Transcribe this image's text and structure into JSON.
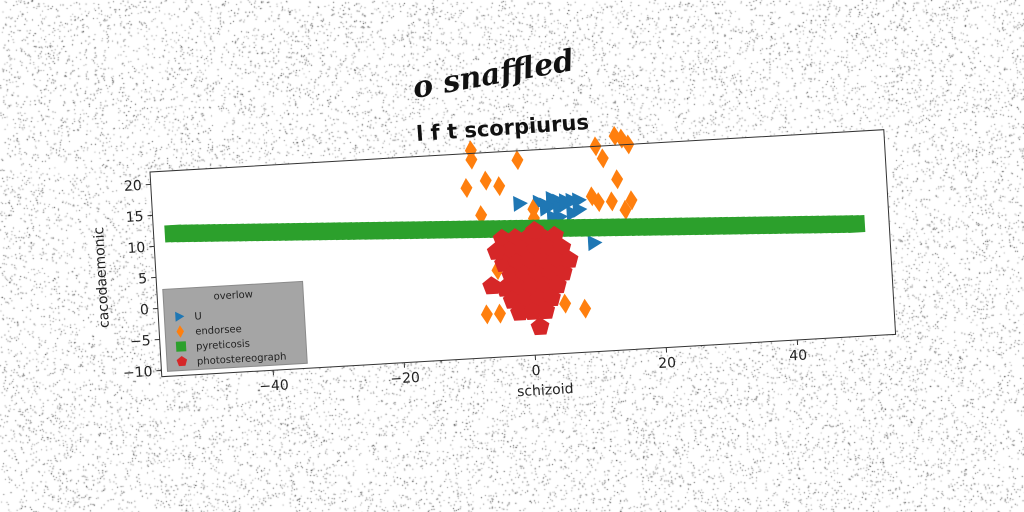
{
  "chart_data": {
    "type": "scatter",
    "suptitle": "o snaffled",
    "title": "l f t scorpiurus",
    "xlabel": "schizoid",
    "ylabel": "cacodaemonic",
    "xlim": [
      -57,
      55
    ],
    "ylim": [
      -11,
      22
    ],
    "xticks": [
      -40,
      -20,
      0,
      20,
      40
    ],
    "xtick_labels": [
      "−40",
      "−20",
      "0",
      "20",
      "40"
    ],
    "yticks": [
      -10,
      -5,
      0,
      5,
      10,
      15,
      20
    ],
    "ytick_labels": [
      "−10",
      "−5",
      "0",
      "5",
      "10",
      "15",
      "20"
    ],
    "grid": false,
    "legend": {
      "title": "overlow",
      "placement": "lower-left"
    },
    "series": [
      {
        "name": "U",
        "marker": "triangle-right",
        "color": "#1f77b4",
        "points": [
          [
            -1,
            13.5
          ],
          [
            2,
            13.5
          ],
          [
            3,
            12.5
          ],
          [
            4,
            13
          ],
          [
            5,
            13.5
          ],
          [
            5,
            12.5
          ],
          [
            6,
            13
          ],
          [
            7,
            13.5
          ],
          [
            8,
            12
          ],
          [
            8,
            13.5
          ],
          [
            7,
            11.5
          ],
          [
            5,
            11
          ],
          [
            4,
            11
          ],
          [
            4,
            14
          ],
          [
            10,
            6.5
          ],
          [
            4,
            5
          ],
          [
            6,
            13.5
          ],
          [
            3,
            13
          ]
        ]
      },
      {
        "name": "endorsee",
        "marker": "diamond",
        "color": "#ff7f0e",
        "points": [
          [
            -8,
            22.5
          ],
          [
            -8,
            21
          ],
          [
            -1,
            20.5
          ],
          [
            11,
            22
          ],
          [
            14,
            23.5
          ],
          [
            15,
            23
          ],
          [
            16,
            22
          ],
          [
            12,
            20
          ],
          [
            -9,
            16.5
          ],
          [
            -6,
            17.5
          ],
          [
            -4,
            16.5
          ],
          [
            14,
            16.5
          ],
          [
            10,
            14
          ],
          [
            11,
            13
          ],
          [
            13,
            13
          ],
          [
            16,
            13
          ],
          [
            15,
            11.5
          ],
          [
            -7,
            12
          ],
          [
            1,
            12.5
          ],
          [
            1,
            11
          ],
          [
            -7,
            -4
          ],
          [
            -5,
            -4
          ],
          [
            -1,
            -2
          ],
          [
            5,
            -3
          ],
          [
            8,
            -4
          ],
          [
            -1,
            6
          ],
          [
            -5,
            3
          ]
        ]
      },
      {
        "name": "pyreticosis",
        "marker": "square",
        "color": "#2ca02c",
        "line": {
          "x_from": -54,
          "x_to": 50,
          "y_from": 11.9,
          "y_to": 7.1
        }
      },
      {
        "name": "photostereograph",
        "marker": "pentagon",
        "color": "#d62728",
        "points": [
          [
            -4,
            8
          ],
          [
            -2,
            8
          ],
          [
            0,
            8
          ],
          [
            2,
            8
          ],
          [
            4,
            8
          ],
          [
            -3,
            6
          ],
          [
            -1,
            6
          ],
          [
            1,
            6
          ],
          [
            3,
            6
          ],
          [
            5,
            6
          ],
          [
            -4,
            4
          ],
          [
            -2,
            4
          ],
          [
            0,
            4
          ],
          [
            2,
            4
          ],
          [
            4,
            4
          ],
          [
            -3,
            2
          ],
          [
            -1,
            2
          ],
          [
            1,
            2
          ],
          [
            3,
            2
          ],
          [
            5,
            2
          ],
          [
            -4,
            0
          ],
          [
            -2,
            0
          ],
          [
            0,
            0
          ],
          [
            2,
            0
          ],
          [
            4,
            0
          ],
          [
            -6,
            0.5
          ],
          [
            -3,
            -2
          ],
          [
            -1,
            -2
          ],
          [
            1,
            -2
          ],
          [
            3,
            -2
          ],
          [
            -2,
            -4
          ],
          [
            0,
            -4
          ],
          [
            2,
            -4
          ],
          [
            1,
            -6.5
          ],
          [
            -5,
            6
          ],
          [
            6,
            4
          ],
          [
            1,
            9
          ]
        ]
      }
    ]
  }
}
